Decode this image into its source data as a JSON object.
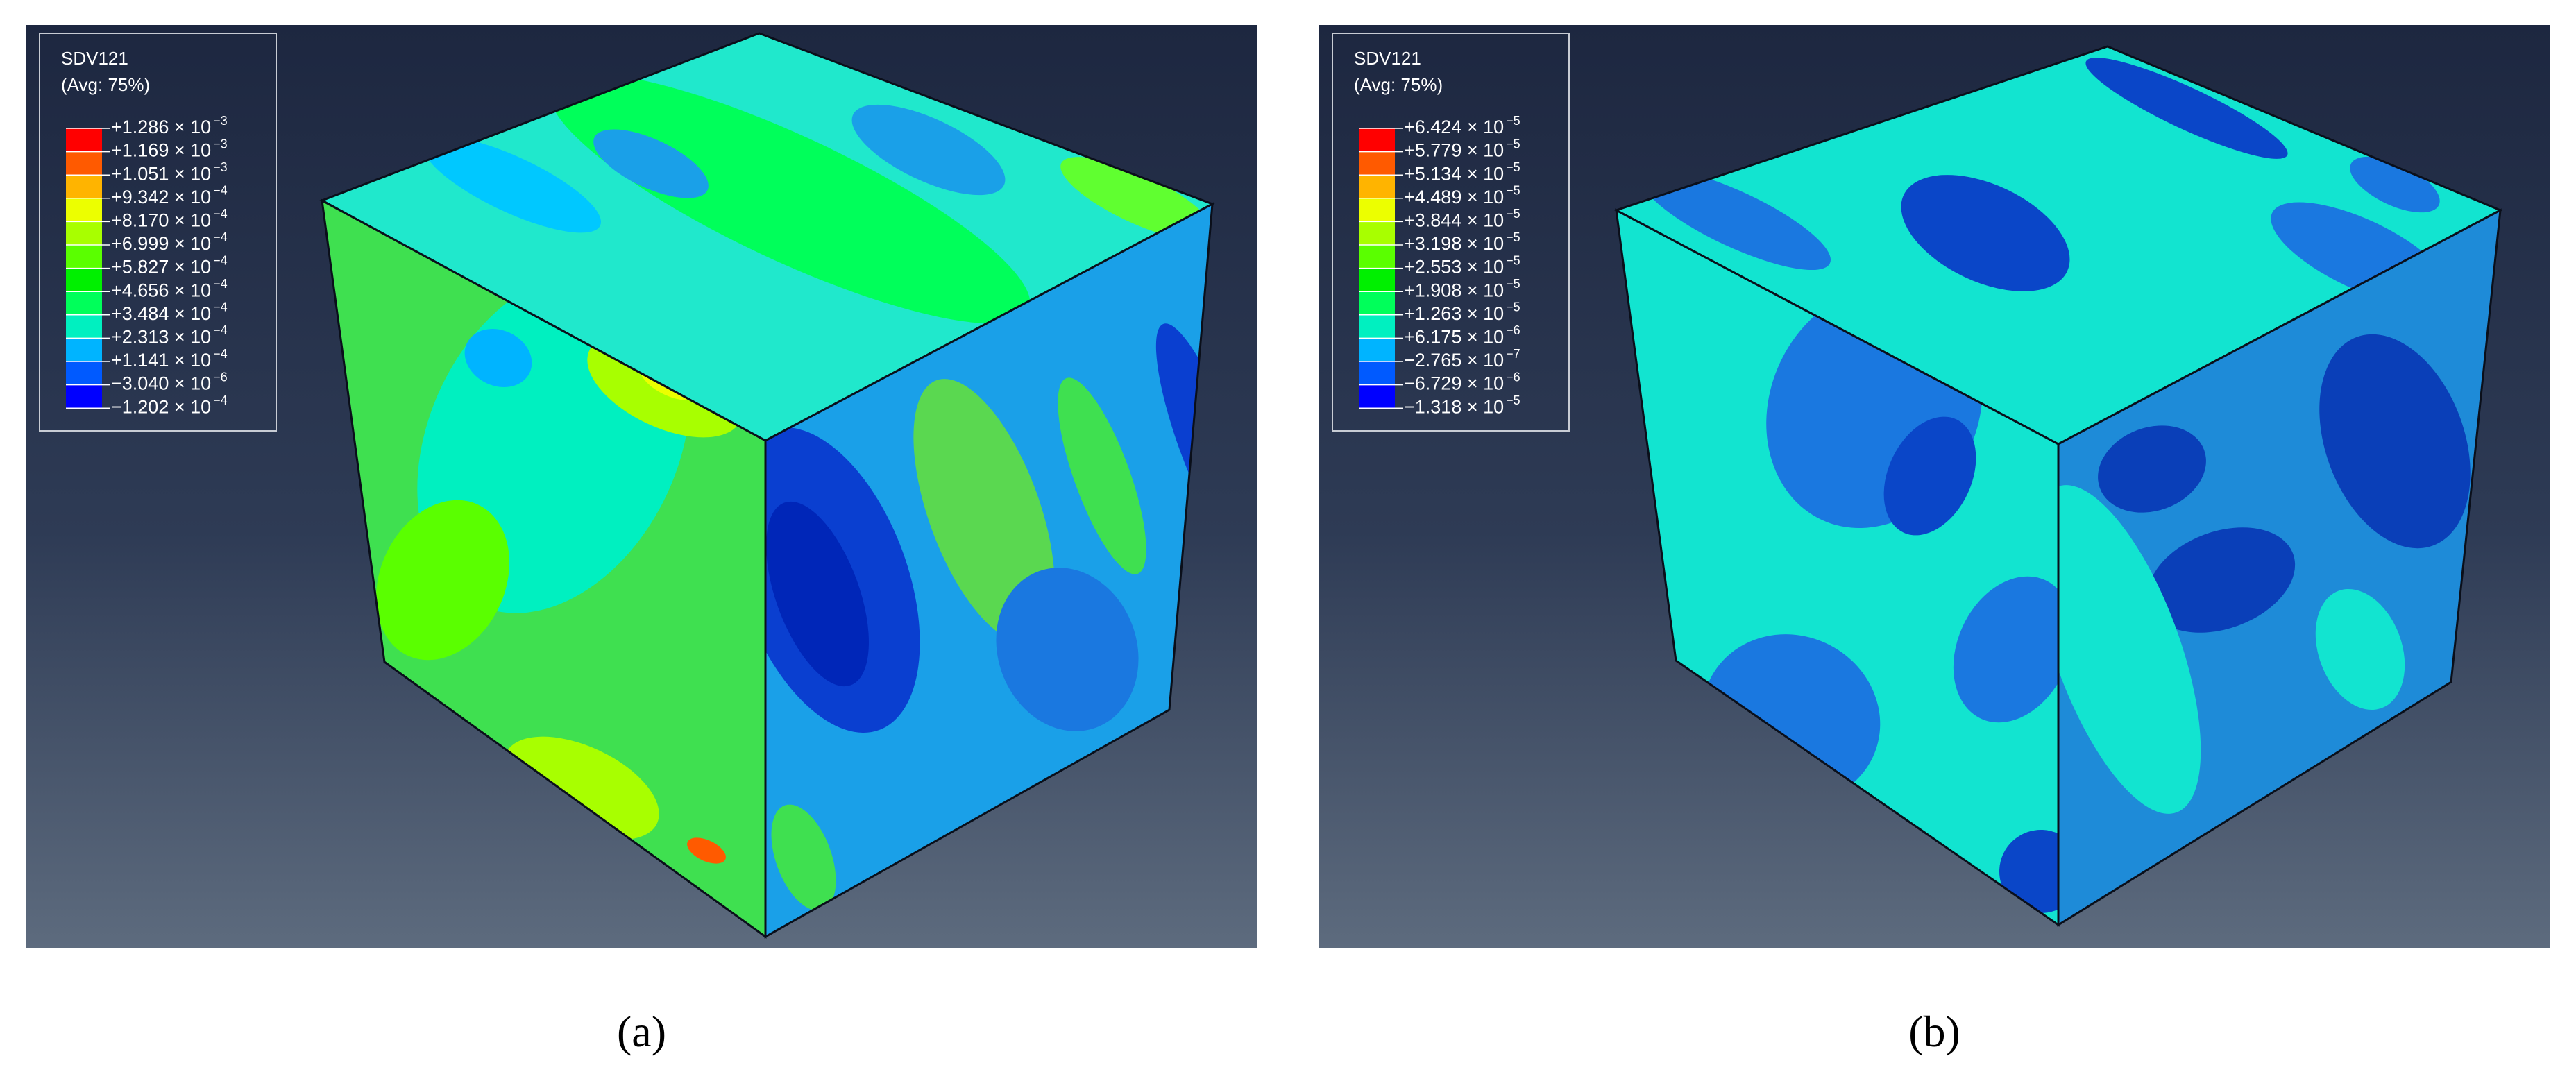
{
  "panels": [
    {
      "caption": "(a)",
      "legend": {
        "title": "SDV121",
        "subtitle": "(Avg: 75%)",
        "colors": [
          "#ff0000",
          "#ff5a00",
          "#ffb400",
          "#ecff00",
          "#a8ff00",
          "#5aff00",
          "#00f000",
          "#00ff5a",
          "#00f0c0",
          "#00b4ff",
          "#005aff",
          "#0000ff"
        ],
        "entries": [
          {
            "mantissa": "+1.286 × 10",
            "exponent": "−3"
          },
          {
            "mantissa": "+1.169 × 10",
            "exponent": "−3"
          },
          {
            "mantissa": "+1.051 × 10",
            "exponent": "−3"
          },
          {
            "mantissa": "+9.342 × 10",
            "exponent": "−4"
          },
          {
            "mantissa": "+8.170 × 10",
            "exponent": "−4"
          },
          {
            "mantissa": "+6.999 × 10",
            "exponent": "−4"
          },
          {
            "mantissa": "+5.827 × 10",
            "exponent": "−4"
          },
          {
            "mantissa": "+4.656 × 10",
            "exponent": "−4"
          },
          {
            "mantissa": "+3.484 × 10",
            "exponent": "−4"
          },
          {
            "mantissa": "+2.313 × 10",
            "exponent": "−4"
          },
          {
            "mantissa": "+1.141 × 10",
            "exponent": "−4"
          },
          {
            "mantissa": "−3.040 × 10",
            "exponent": "−6"
          },
          {
            "mantissa": "−1.202 × 10",
            "exponent": "−4"
          }
        ]
      }
    },
    {
      "caption": "(b)",
      "legend": {
        "title": "SDV121",
        "subtitle": "(Avg: 75%)",
        "colors": [
          "#ff0000",
          "#ff5a00",
          "#ffb400",
          "#ecff00",
          "#a8ff00",
          "#5aff00",
          "#00f000",
          "#00ff5a",
          "#00f0c0",
          "#00b4ff",
          "#005aff",
          "#0000ff"
        ],
        "entries": [
          {
            "mantissa": "+6.424 × 10",
            "exponent": "−5"
          },
          {
            "mantissa": "+5.779 × 10",
            "exponent": "−5"
          },
          {
            "mantissa": "+5.134 × 10",
            "exponent": "−5"
          },
          {
            "mantissa": "+4.489 × 10",
            "exponent": "−5"
          },
          {
            "mantissa": "+3.844 × 10",
            "exponent": "−5"
          },
          {
            "mantissa": "+3.198 × 10",
            "exponent": "−5"
          },
          {
            "mantissa": "+2.553 × 10",
            "exponent": "−5"
          },
          {
            "mantissa": "+1.908 × 10",
            "exponent": "−5"
          },
          {
            "mantissa": "+1.263 × 10",
            "exponent": "−5"
          },
          {
            "mantissa": "+6.175 × 10",
            "exponent": "−6"
          },
          {
            "mantissa": "−2.765 × 10",
            "exponent": "−7"
          },
          {
            "mantissa": "−6.729 × 10",
            "exponent": "−6"
          },
          {
            "mantissa": "−1.318 × 10",
            "exponent": "−5"
          }
        ]
      }
    }
  ]
}
